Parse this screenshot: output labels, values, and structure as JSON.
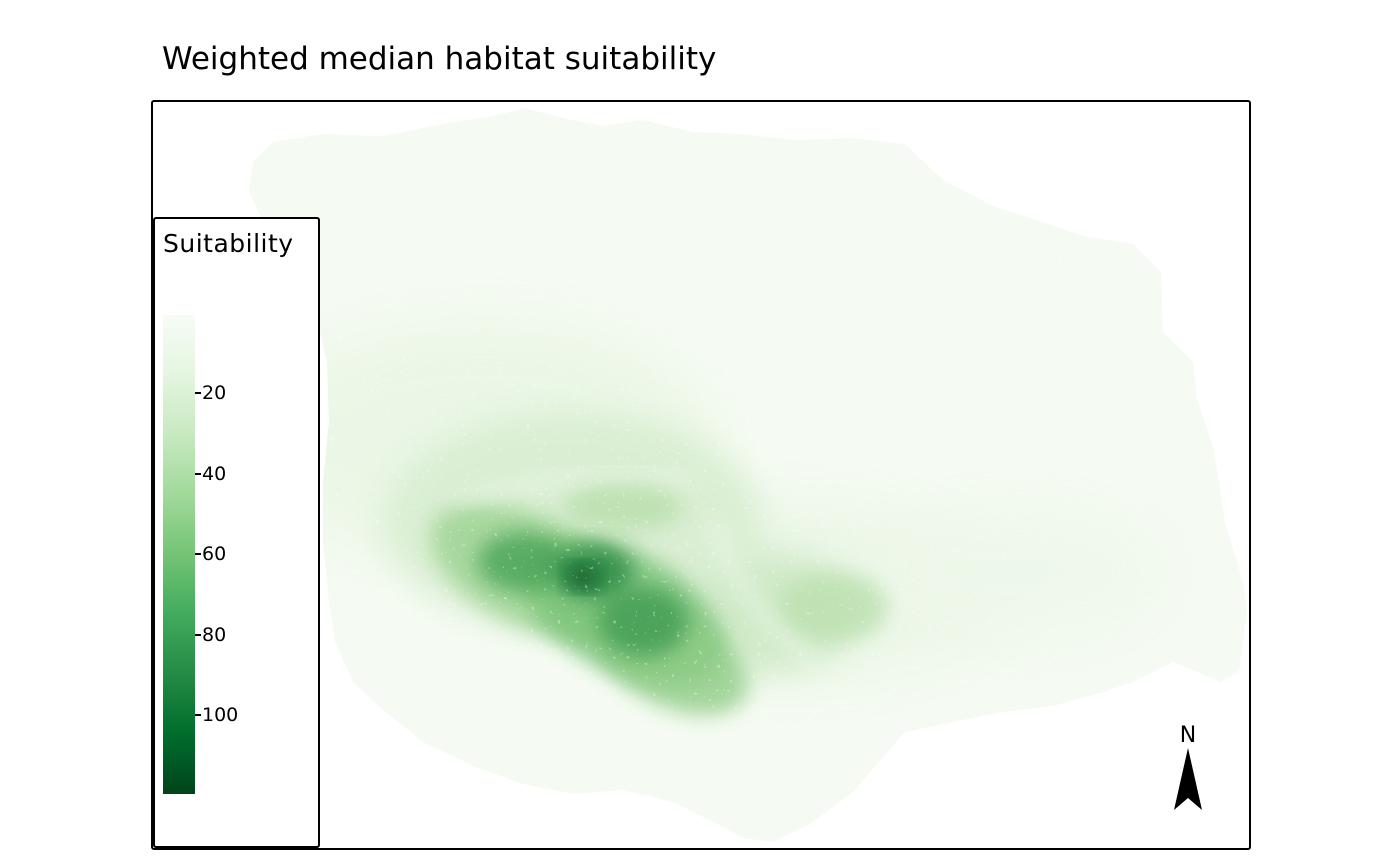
{
  "title": "Weighted median habitat suitability",
  "legend": {
    "title": "Suitability",
    "labels": [
      "20",
      "40",
      "60",
      "80",
      "100"
    ],
    "color_low": "#f7fcf5",
    "color_high": "#00441b"
  },
  "north_arrow": {
    "label": "N"
  },
  "colors": {
    "frame": "#000000",
    "background": "#ffffff"
  }
}
